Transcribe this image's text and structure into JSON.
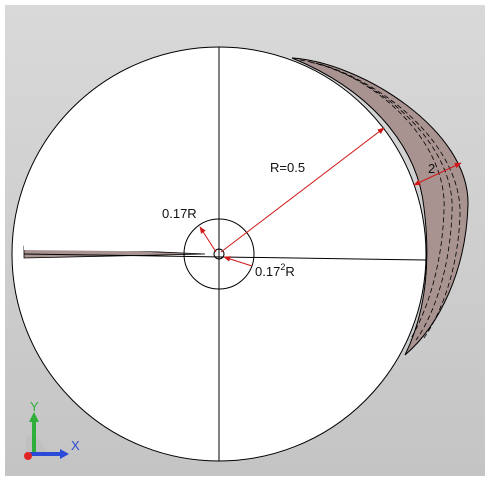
{
  "viewport": {
    "background_top": "#d9d9d9",
    "background_bottom": "#c4c4c4",
    "border_color": "#ffffff"
  },
  "annotations": {
    "radius_label": "R=0.5",
    "inner_radius_label": "0.17R",
    "innermost_radius_base": "0.17",
    "innermost_radius_exponent": "2",
    "innermost_radius_suffix": "R",
    "length_label": "2"
  },
  "colors": {
    "disk_fill": "#ffffff",
    "body_fill": "#a89391",
    "line": "#000000",
    "dimension_arrow": "#d01818"
  },
  "triad": {
    "x_label": "X",
    "y_label": "Y",
    "x_color": "#2a4bd7",
    "y_color": "#2fae3a",
    "z_color": "#e02424"
  }
}
